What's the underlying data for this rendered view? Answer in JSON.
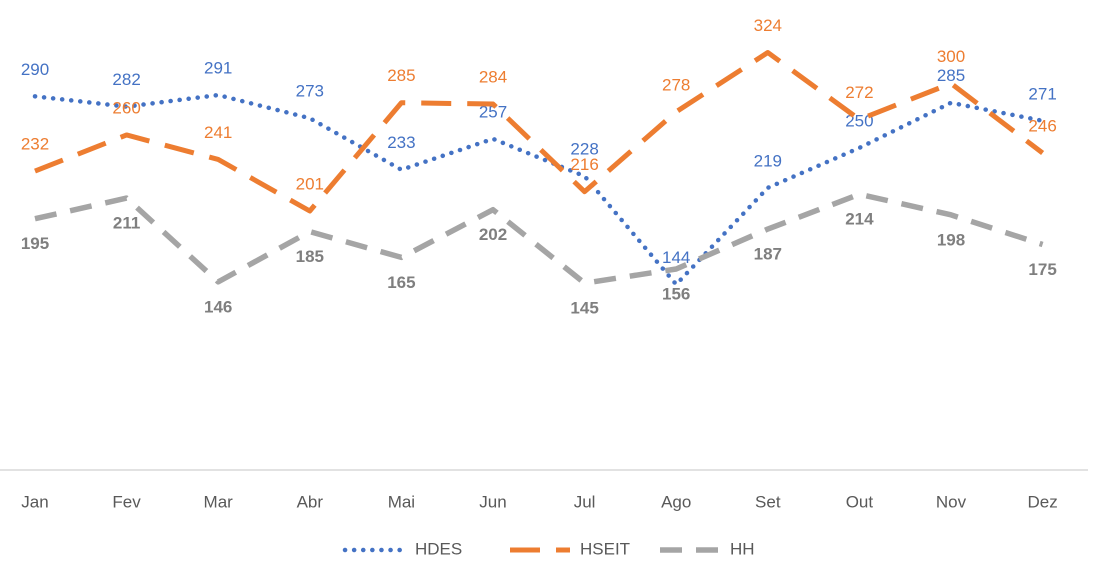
{
  "chart_data": {
    "type": "line",
    "categories": [
      "Jan",
      "Fev",
      "Mar",
      "Abr",
      "Mai",
      "Jun",
      "Jul",
      "Ago",
      "Set",
      "Out",
      "Nov",
      "Dez"
    ],
    "series": [
      {
        "name": "HDES",
        "color": "#4472c4",
        "values": [
          290,
          282,
          291,
          273,
          233,
          257,
          228,
          144,
          219,
          250,
          285,
          271
        ]
      },
      {
        "name": "HSEIT",
        "color": "#ed7d31",
        "values": [
          232,
          260,
          241,
          201,
          285,
          284,
          216,
          278,
          324,
          272,
          300,
          246
        ]
      },
      {
        "name": "HH",
        "color": "#a5a5a5",
        "values": [
          195,
          211,
          146,
          185,
          165,
          202,
          145,
          156,
          187,
          214,
          198,
          175
        ]
      }
    ],
    "ylim": [
      0,
      350
    ],
    "legend": "bottom"
  }
}
